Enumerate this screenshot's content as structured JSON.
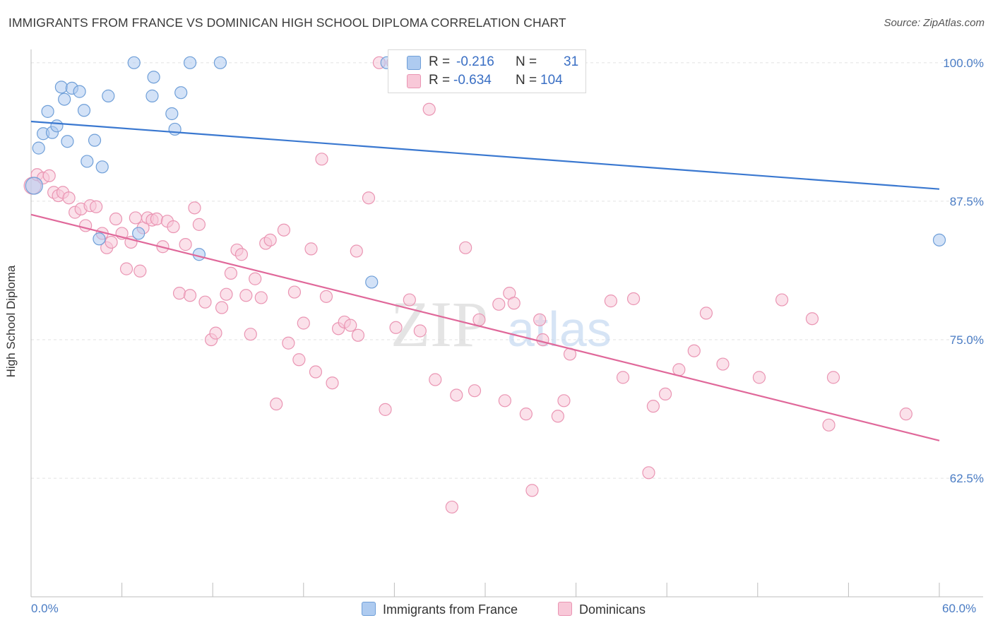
{
  "title": "IMMIGRANTS FROM FRANCE VS DOMINICAN HIGH SCHOOL DIPLOMA CORRELATION CHART",
  "source": "Source: ZipAtlas.com",
  "watermark": {
    "zip": "ZIP",
    "atlas": "atlas"
  },
  "legend": {
    "rows": [
      {
        "r_label": "R =",
        "r_value": "-0.216",
        "n_label": "N =",
        "n_value": "31"
      },
      {
        "r_label": "R =",
        "r_value": "-0.634",
        "n_label": "N =",
        "n_value": "104"
      }
    ]
  },
  "bottom_legend": [
    "Immigrants from France",
    "Dominicans"
  ],
  "colors": {
    "blue_fill": "#aecbf0",
    "blue_stroke": "#6f9fd8",
    "blue_line": "#3a78d0",
    "pink_fill": "#f8c8d8",
    "pink_stroke": "#ea95b3",
    "pink_line": "#e0689a",
    "tick_label": "#4a7cc4",
    "grid": "#e2e2e2"
  },
  "chart_data": {
    "type": "scatter",
    "title": "IMMIGRANTS FROM FRANCE VS DOMINICAN HIGH SCHOOL DIPLOMA CORRELATION CHART",
    "xlabel": "",
    "ylabel": "High School Diploma",
    "xlim": [
      0,
      60
    ],
    "ylim": [
      51.8,
      101.2
    ],
    "x_tick_labels": [
      "0.0%",
      "60.0%"
    ],
    "y_ticks": [
      62.5,
      75.0,
      87.5,
      100.0
    ],
    "y_tick_labels": [
      "62.5%",
      "75.0%",
      "87.5%",
      "100.0%"
    ],
    "grid": true,
    "legend_placement": "top-center",
    "series": [
      {
        "name": "Immigrants from France",
        "r": -0.216,
        "n": 31,
        "trend": {
          "x": [
            0,
            60
          ],
          "y": [
            94.7,
            88.6
          ]
        },
        "points": [
          [
            0.2,
            88.9
          ],
          [
            0.5,
            92.3
          ],
          [
            0.8,
            93.6
          ],
          [
            1.1,
            95.6
          ],
          [
            1.4,
            93.7
          ],
          [
            1.7,
            94.3
          ],
          [
            2.0,
            97.8
          ],
          [
            2.2,
            96.7
          ],
          [
            2.4,
            92.9
          ],
          [
            2.7,
            97.7
          ],
          [
            3.2,
            97.4
          ],
          [
            3.5,
            95.7
          ],
          [
            3.7,
            91.1
          ],
          [
            4.2,
            93.0
          ],
          [
            4.7,
            90.6
          ],
          [
            5.1,
            97.0
          ],
          [
            6.8,
            100.0
          ],
          [
            8.1,
            98.7
          ],
          [
            8.0,
            97.0
          ],
          [
            9.3,
            95.4
          ],
          [
            9.5,
            94.0
          ],
          [
            9.9,
            97.3
          ],
          [
            10.5,
            100.0
          ],
          [
            11.1,
            82.7
          ],
          [
            12.5,
            100.0
          ],
          [
            22.5,
            80.2
          ],
          [
            23.5,
            100.0
          ],
          [
            4.5,
            84.1
          ],
          [
            7.1,
            84.6
          ],
          [
            31.2,
            100.0
          ],
          [
            60.0,
            84.0
          ]
        ]
      },
      {
        "name": "Dominicans",
        "r": -0.634,
        "n": 104,
        "trend": {
          "x": [
            0,
            60
          ],
          "y": [
            86.3,
            65.9
          ]
        },
        "points": [
          [
            0.1,
            88.9
          ],
          [
            0.4,
            89.9
          ],
          [
            0.8,
            89.6
          ],
          [
            1.2,
            89.8
          ],
          [
            1.5,
            88.3
          ],
          [
            1.8,
            88.0
          ],
          [
            2.1,
            88.3
          ],
          [
            2.5,
            87.8
          ],
          [
            2.9,
            86.5
          ],
          [
            3.3,
            86.8
          ],
          [
            3.6,
            85.3
          ],
          [
            3.9,
            87.1
          ],
          [
            4.3,
            87.0
          ],
          [
            4.7,
            84.6
          ],
          [
            5.0,
            83.3
          ],
          [
            5.3,
            83.8
          ],
          [
            5.6,
            85.9
          ],
          [
            6.0,
            84.6
          ],
          [
            6.3,
            81.4
          ],
          [
            6.6,
            83.8
          ],
          [
            6.9,
            86.0
          ],
          [
            7.2,
            81.2
          ],
          [
            7.4,
            85.1
          ],
          [
            7.7,
            86.0
          ],
          [
            8.0,
            85.8
          ],
          [
            8.3,
            85.9
          ],
          [
            8.7,
            83.4
          ],
          [
            9.0,
            85.7
          ],
          [
            9.4,
            85.2
          ],
          [
            9.8,
            79.2
          ],
          [
            10.2,
            83.6
          ],
          [
            10.5,
            79.0
          ],
          [
            10.8,
            86.9
          ],
          [
            11.1,
            85.4
          ],
          [
            11.5,
            78.4
          ],
          [
            11.9,
            75.0
          ],
          [
            12.2,
            75.6
          ],
          [
            12.6,
            77.9
          ],
          [
            12.9,
            79.1
          ],
          [
            13.2,
            81.0
          ],
          [
            13.6,
            83.1
          ],
          [
            13.9,
            82.7
          ],
          [
            14.2,
            79.0
          ],
          [
            14.5,
            75.5
          ],
          [
            14.8,
            80.5
          ],
          [
            15.2,
            78.8
          ],
          [
            15.5,
            83.7
          ],
          [
            15.8,
            84.0
          ],
          [
            16.2,
            69.2
          ],
          [
            16.7,
            84.9
          ],
          [
            17.0,
            74.7
          ],
          [
            17.4,
            79.3
          ],
          [
            17.7,
            73.2
          ],
          [
            18.0,
            76.5
          ],
          [
            18.5,
            83.2
          ],
          [
            18.8,
            72.1
          ],
          [
            19.2,
            91.3
          ],
          [
            19.5,
            78.9
          ],
          [
            19.9,
            71.1
          ],
          [
            20.3,
            76.0
          ],
          [
            20.7,
            76.6
          ],
          [
            21.1,
            76.3
          ],
          [
            21.5,
            83.0
          ],
          [
            21.6,
            75.4
          ],
          [
            22.3,
            87.8
          ],
          [
            23.0,
            100.0
          ],
          [
            23.4,
            68.7
          ],
          [
            23.9,
            100.0
          ],
          [
            24.1,
            76.1
          ],
          [
            25.0,
            78.6
          ],
          [
            25.7,
            75.8
          ],
          [
            26.3,
            95.8
          ],
          [
            26.7,
            71.4
          ],
          [
            27.8,
            59.9
          ],
          [
            28.1,
            70.0
          ],
          [
            28.7,
            83.3
          ],
          [
            29.3,
            70.4
          ],
          [
            29.6,
            76.8
          ],
          [
            30.9,
            78.2
          ],
          [
            31.3,
            69.5
          ],
          [
            31.6,
            79.2
          ],
          [
            31.9,
            78.3
          ],
          [
            32.7,
            68.3
          ],
          [
            33.1,
            61.4
          ],
          [
            33.6,
            76.8
          ],
          [
            33.8,
            75.0
          ],
          [
            34.8,
            68.1
          ],
          [
            35.2,
            69.5
          ],
          [
            35.6,
            73.7
          ],
          [
            38.3,
            78.5
          ],
          [
            39.1,
            71.6
          ],
          [
            39.8,
            78.7
          ],
          [
            40.8,
            63.0
          ],
          [
            41.1,
            69.0
          ],
          [
            41.9,
            70.1
          ],
          [
            42.8,
            72.3
          ],
          [
            43.8,
            74.0
          ],
          [
            44.6,
            77.4
          ],
          [
            45.7,
            72.8
          ],
          [
            48.1,
            71.6
          ],
          [
            49.6,
            78.6
          ],
          [
            51.6,
            76.9
          ],
          [
            52.7,
            67.3
          ],
          [
            53.0,
            71.6
          ],
          [
            57.8,
            68.3
          ]
        ]
      }
    ]
  }
}
